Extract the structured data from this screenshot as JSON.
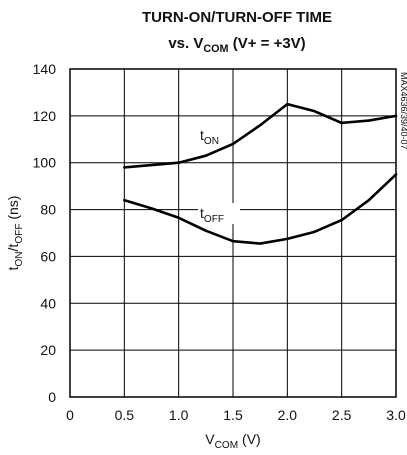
{
  "chart_data": {
    "type": "line",
    "title": "TURN-ON/TURN-OFF TIME",
    "subtitle": [
      "vs. V",
      "COM",
      " (V+ = +3V)"
    ],
    "x_label": [
      "V",
      "COM",
      " (V)"
    ],
    "y_label": [
      "t",
      "ON",
      "/t",
      "OFF",
      " (ns)"
    ],
    "side_label": "MAX4636/39/40-07",
    "x": [
      0.5,
      0.75,
      1.0,
      1.25,
      1.5,
      1.75,
      2.0,
      2.25,
      2.5,
      2.75,
      3.0
    ],
    "series": [
      {
        "label": [
          "t",
          "ON"
        ],
        "color": "#000000",
        "values": [
          98,
          99,
          100,
          103,
          108,
          116,
          125,
          122,
          117,
          118,
          120
        ]
      },
      {
        "label": [
          "t",
          "OFF"
        ],
        "color": "#000000",
        "values": [
          84,
          80.5,
          76.5,
          71,
          66.5,
          65.5,
          67.5,
          70.5,
          75.5,
          84,
          95
        ]
      }
    ],
    "xlim": [
      0,
      3
    ],
    "xticks": [
      0,
      0.5,
      {
        "value": 1,
        "label": "1.0"
      },
      1.5,
      {
        "value": 2,
        "label": "2.0"
      },
      2.5,
      {
        "value": 3,
        "label": "3.0"
      }
    ],
    "ylim": [
      0,
      140
    ],
    "yticks": [
      0,
      20,
      40,
      60,
      80,
      100,
      120,
      140
    ],
    "grid": true
  }
}
